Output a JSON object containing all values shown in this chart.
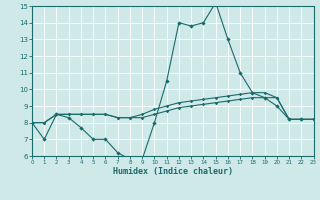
{
  "x": [
    0,
    1,
    2,
    3,
    4,
    5,
    6,
    7,
    8,
    9,
    10,
    11,
    12,
    13,
    14,
    15,
    16,
    17,
    18,
    19,
    20,
    21,
    22,
    23
  ],
  "line1": [
    8.0,
    7.0,
    8.5,
    8.3,
    7.7,
    7.0,
    7.0,
    6.2,
    5.8,
    5.8,
    8.0,
    10.5,
    14.0,
    13.8,
    14.0,
    15.2,
    13.0,
    11.0,
    9.8,
    9.5,
    9.0,
    8.2,
    8.2,
    8.2
  ],
  "line2": [
    8.0,
    8.0,
    8.5,
    8.5,
    8.5,
    8.5,
    8.5,
    8.3,
    8.3,
    8.3,
    8.5,
    8.7,
    8.9,
    9.0,
    9.1,
    9.2,
    9.3,
    9.4,
    9.5,
    9.5,
    9.5,
    8.2,
    8.2,
    8.2
  ],
  "line3": [
    8.0,
    8.0,
    8.5,
    8.5,
    8.5,
    8.5,
    8.5,
    8.3,
    8.3,
    8.5,
    8.8,
    9.0,
    9.2,
    9.3,
    9.4,
    9.5,
    9.6,
    9.7,
    9.8,
    9.8,
    9.5,
    8.2,
    8.2,
    8.2
  ],
  "bg_color": "#cfe8e8",
  "line_color": "#1a6b6b",
  "grid_color": "#b8d8d8",
  "xlabel": "Humidex (Indice chaleur)",
  "ylim": [
    6,
    15
  ],
  "xlim": [
    0,
    23
  ],
  "yticks": [
    6,
    7,
    8,
    9,
    10,
    11,
    12,
    13,
    14,
    15
  ],
  "xticks": [
    0,
    1,
    2,
    3,
    4,
    5,
    6,
    7,
    8,
    9,
    10,
    11,
    12,
    13,
    14,
    15,
    16,
    17,
    18,
    19,
    20,
    21,
    22,
    23
  ]
}
